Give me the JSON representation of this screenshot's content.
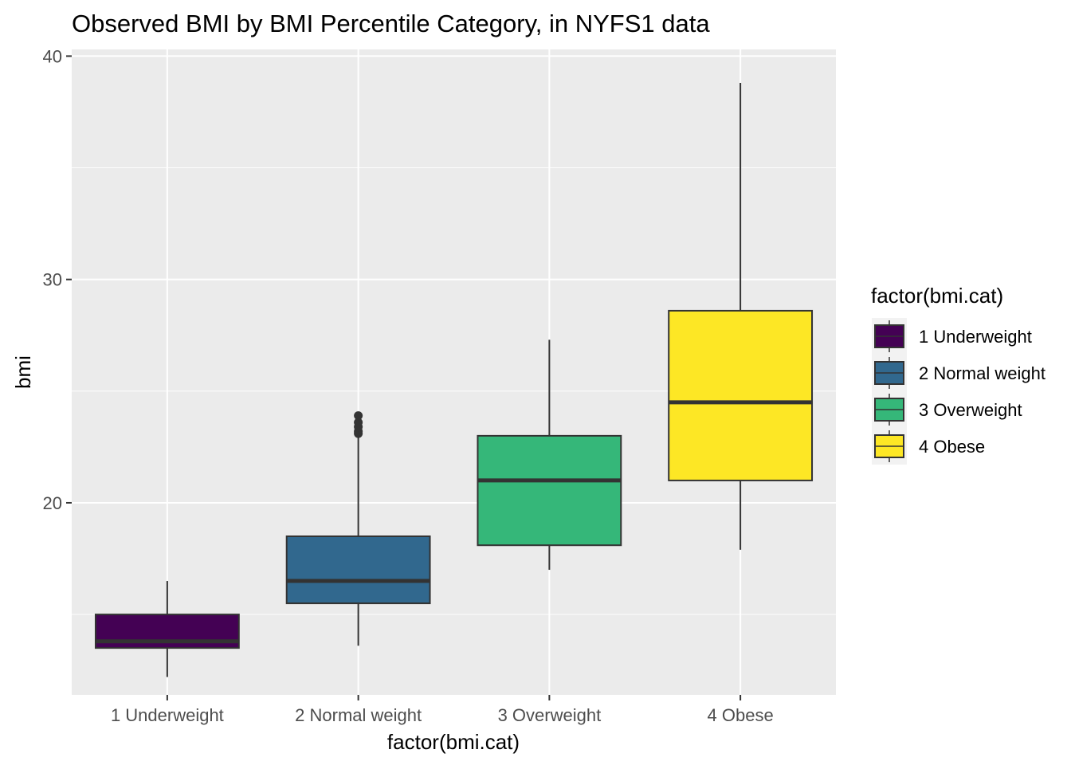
{
  "chart_data": {
    "type": "boxplot",
    "title": "Observed BMI by BMI Percentile Category, in NYFS1 data",
    "xlabel": "factor(bmi.cat)",
    "ylabel": "bmi",
    "ylim": [
      11.4,
      40.3
    ],
    "yticks": [
      20,
      30,
      40
    ],
    "ytick_labels": [
      "20",
      "30",
      "40"
    ],
    "grid": true,
    "legend": {
      "title": "factor(bmi.cat)",
      "position": "right"
    },
    "categories": [
      "1 Underweight",
      "2 Normal weight",
      "3 Overweight",
      "4 Obese"
    ],
    "colors": [
      "#440154",
      "#31688E",
      "#35B779",
      "#FDE725"
    ],
    "boxes": [
      {
        "min": 12.2,
        "q1": 13.5,
        "median": 13.8,
        "q3": 15.0,
        "max": 16.5,
        "outliers": []
      },
      {
        "min": 13.6,
        "q1": 15.5,
        "median": 16.5,
        "q3": 18.5,
        "max": 23.9,
        "outliers": [
          23.1,
          23.2,
          23.4,
          23.6,
          23.9
        ]
      },
      {
        "min": 17.0,
        "q1": 18.1,
        "median": 21.0,
        "q3": 23.0,
        "max": 27.3,
        "outliers": []
      },
      {
        "min": 17.9,
        "q1": 21.0,
        "median": 24.5,
        "q3": 28.6,
        "max": 38.8,
        "outliers": []
      }
    ]
  }
}
